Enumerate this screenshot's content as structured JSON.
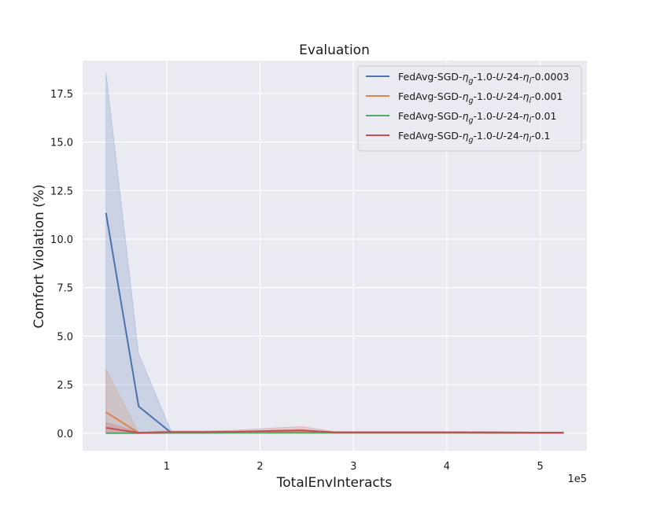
{
  "chart_data": {
    "type": "line",
    "title": "Evaluation",
    "xlabel": "TotalEnvInteracts",
    "ylabel": "Comfort Violation (%)",
    "x_offset_label": "1e5",
    "xlim": [
      10000,
      550000
    ],
    "ylim": [
      -0.9,
      19.2
    ],
    "xticks": [
      100000,
      200000,
      300000,
      400000,
      500000
    ],
    "xtick_labels": [
      "1",
      "2",
      "3",
      "4",
      "5"
    ],
    "yticks": [
      0.0,
      2.5,
      5.0,
      7.5,
      10.0,
      12.5,
      15.0,
      17.5
    ],
    "ytick_labels": [
      "0.0",
      "2.5",
      "5.0",
      "7.5",
      "10.0",
      "12.5",
      "15.0",
      "17.5"
    ],
    "grid": true,
    "legend_position": "top-right",
    "x": [
      35000,
      70000,
      105000,
      140000,
      175000,
      210000,
      245000,
      280000,
      315000,
      350000,
      385000,
      420000,
      455000,
      490000,
      525000
    ],
    "series": [
      {
        "name": "FedAvg-SGD-ηg-1.0-U-24-ηl-0.0003",
        "legend_parts": [
          "FedAvg-SGD-",
          "η",
          "g",
          "-1.0-",
          "U",
          "-24-",
          "η",
          "l",
          "-0.0003"
        ],
        "color": "#4c72b0",
        "values": [
          11.35,
          1.38,
          0.02,
          0.03,
          0.04,
          0.05,
          0.05,
          0.03,
          0.03,
          0.03,
          0.03,
          0.03,
          0.02,
          0.02,
          0.02
        ],
        "lower": [
          0.0,
          0.0,
          0.0,
          0.0,
          0.0,
          0.0,
          0.0,
          0.0,
          0.0,
          0.0,
          0.0,
          0.0,
          0.0,
          0.0,
          0.0
        ],
        "upper": [
          18.6,
          4.1,
          0.08,
          0.08,
          0.1,
          0.1,
          0.1,
          0.07,
          0.07,
          0.07,
          0.07,
          0.07,
          0.05,
          0.05,
          0.05
        ]
      },
      {
        "name": "FedAvg-SGD-ηg-1.0-U-24-ηl-0.001",
        "legend_parts": [
          "FedAvg-SGD-",
          "η",
          "g",
          "-1.0-",
          "U",
          "-24-",
          "η",
          "l",
          "-0.001"
        ],
        "color": "#dd8452",
        "values": [
          1.08,
          0.02,
          0.03,
          0.03,
          0.04,
          0.05,
          0.06,
          0.03,
          0.03,
          0.03,
          0.03,
          0.03,
          0.02,
          0.02,
          0.02
        ],
        "lower": [
          0.0,
          0.0,
          0.0,
          0.0,
          0.0,
          0.0,
          0.0,
          0.0,
          0.0,
          0.0,
          0.0,
          0.0,
          0.0,
          0.0,
          0.0
        ],
        "upper": [
          3.3,
          0.05,
          0.08,
          0.08,
          0.1,
          0.12,
          0.15,
          0.08,
          0.08,
          0.08,
          0.08,
          0.08,
          0.05,
          0.05,
          0.05
        ]
      },
      {
        "name": "FedAvg-SGD-ηg-1.0-U-24-ηl-0.01",
        "legend_parts": [
          "FedAvg-SGD-",
          "η",
          "g",
          "-1.0-",
          "U",
          "-24-",
          "η",
          "l",
          "-0.01"
        ],
        "color": "#55a868",
        "values": [
          0.0,
          0.0,
          0.01,
          0.01,
          0.02,
          0.02,
          0.02,
          0.02,
          0.02,
          0.02,
          0.02,
          0.02,
          0.02,
          0.01,
          0.01
        ],
        "lower": [
          0.0,
          0.0,
          0.0,
          0.0,
          0.0,
          0.0,
          0.0,
          0.0,
          0.0,
          0.0,
          0.0,
          0.0,
          0.0,
          0.0,
          0.0
        ],
        "upper": [
          0.02,
          0.02,
          0.04,
          0.04,
          0.05,
          0.05,
          0.05,
          0.05,
          0.05,
          0.05,
          0.05,
          0.05,
          0.05,
          0.04,
          0.04
        ]
      },
      {
        "name": "FedAvg-SGD-ηg-1.0-U-24-ηl-0.1",
        "legend_parts": [
          "FedAvg-SGD-",
          "η",
          "g",
          "-1.0-",
          "U",
          "-24-",
          "η",
          "l",
          "-0.1"
        ],
        "color": "#c44e52",
        "values": [
          0.28,
          0.02,
          0.06,
          0.06,
          0.08,
          0.12,
          0.15,
          0.04,
          0.04,
          0.04,
          0.04,
          0.04,
          0.04,
          0.03,
          0.03
        ],
        "lower": [
          0.0,
          0.0,
          0.0,
          0.0,
          0.0,
          0.0,
          0.0,
          0.0,
          0.0,
          0.0,
          0.0,
          0.0,
          0.0,
          0.0,
          0.0
        ],
        "upper": [
          0.55,
          0.05,
          0.12,
          0.12,
          0.16,
          0.26,
          0.34,
          0.08,
          0.08,
          0.08,
          0.08,
          0.08,
          0.08,
          0.06,
          0.06
        ]
      }
    ]
  },
  "colors": {
    "plot_background": "#eaeaf2",
    "grid": "#ffffff",
    "figure_background": "#ffffff",
    "legend_border": "#cccccc"
  }
}
